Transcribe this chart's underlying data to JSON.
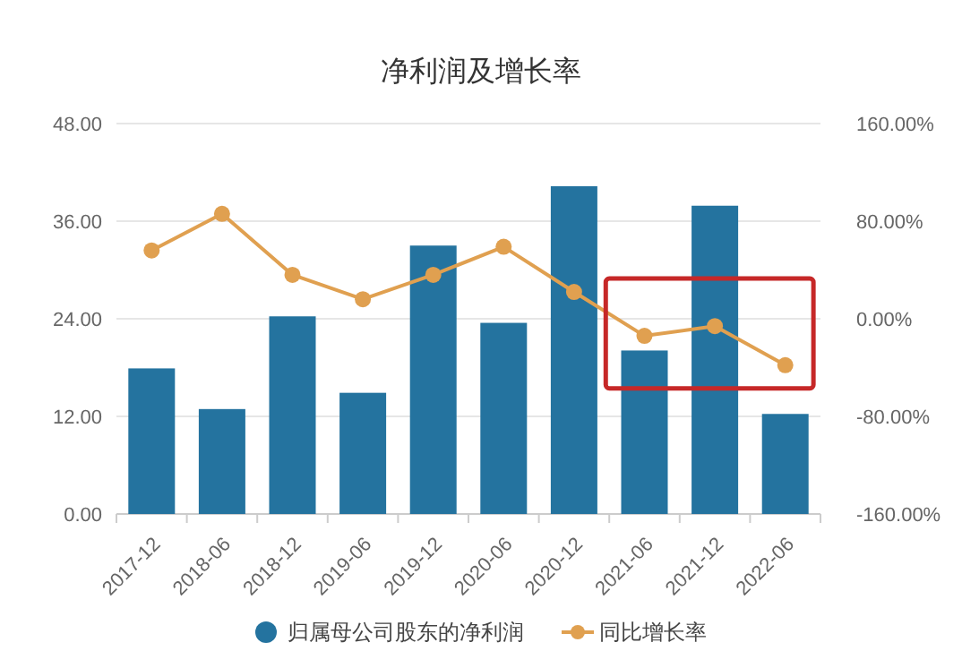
{
  "chart_data": {
    "type": "bar",
    "title": "净利润及增长率",
    "categories": [
      "2017-12",
      "2018-06",
      "2018-12",
      "2019-06",
      "2019-12",
      "2020-06",
      "2020-12",
      "2021-06",
      "2021-12",
      "2022-06"
    ],
    "series": [
      {
        "name": "归属母公司股东的净利润",
        "color": "#24739f",
        "values": [
          17.9,
          12.9,
          24.3,
          14.9,
          33.0,
          23.5,
          40.3,
          20.1,
          37.9,
          12.3
        ]
      },
      {
        "name": "同比增长率",
        "type": "line",
        "axis": "y2",
        "color": "#e0a050",
        "values": [
          56,
          86,
          36,
          16,
          36,
          59,
          22,
          -14,
          -6,
          -38
        ]
      }
    ],
    "ylim": [
      0,
      48
    ],
    "yticks": [
      {
        "value": 0,
        "label": "0.00"
      },
      {
        "value": 12,
        "label": "12.00"
      },
      {
        "value": 24,
        "label": "24.00"
      },
      {
        "value": 36,
        "label": "36.00"
      },
      {
        "value": 48,
        "label": "48.00"
      }
    ],
    "y2lim": [
      -160,
      160
    ],
    "y2ticks": [
      {
        "value": -160,
        "label": "-160.00%"
      },
      {
        "value": -80,
        "label": "-80.00%"
      },
      {
        "value": 0,
        "label": "0.00%"
      },
      {
        "value": 80,
        "label": "80.00%"
      },
      {
        "value": 160,
        "label": "160.00%"
      }
    ],
    "grid": "y",
    "legend": "bottom",
    "marker": "circle",
    "line_style": "solid"
  }
}
